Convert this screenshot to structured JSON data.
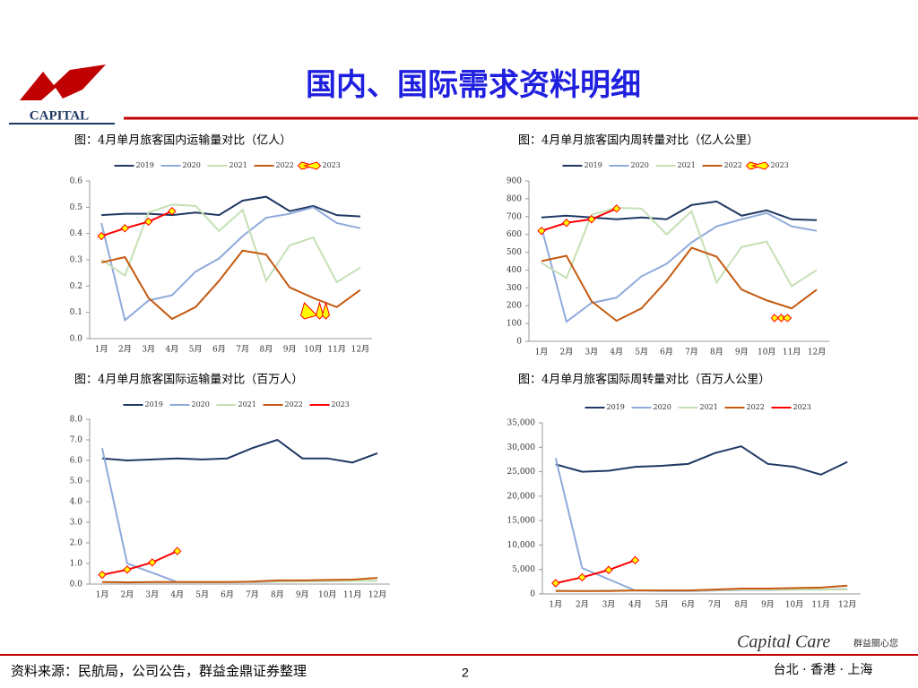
{
  "header": {
    "title": "国内、国际需求资料明细",
    "logo": "CAPITAL"
  },
  "footer": {
    "source": "资料来源：民航局，公司公告，群益金鼎证券整理",
    "page": "2",
    "brand": "Capital Care",
    "slogan": "群益關心您",
    "cities": "台北 · 香港 · 上海"
  },
  "chart_data": [
    {
      "type": "line",
      "title": "图：4月单月旅客国内运输量对比（亿人）",
      "categories": [
        "1月",
        "2月",
        "3月",
        "4月",
        "5月",
        "6月",
        "7月",
        "8月",
        "9月",
        "10月",
        "11月",
        "12月"
      ],
      "ylim": [
        0,
        0.6
      ],
      "yticks": [
        {
          "value": 0,
          "label": "0.0"
        },
        0.1,
        0.2,
        0.3,
        0.4,
        0.5,
        0.6
      ],
      "series": [
        {
          "name": "2019",
          "color": "#1f3864",
          "values": [
            0.47,
            0.475,
            0.475,
            0.47,
            0.48,
            0.47,
            0.525,
            0.54,
            0.485,
            0.505,
            0.47,
            0.465
          ]
        },
        {
          "name": "2020",
          "color": "#8faadc",
          "values": [
            0.44,
            0.07,
            0.145,
            0.165,
            0.255,
            0.305,
            0.39,
            0.46,
            0.475,
            0.5,
            0.44,
            0.42
          ]
        },
        {
          "name": "2021",
          "color": "#c5e0b4",
          "values": [
            0.3,
            0.24,
            0.48,
            0.51,
            0.505,
            0.41,
            0.49,
            0.22,
            0.355,
            0.385,
            0.215,
            0.27
          ]
        },
        {
          "name": "2022",
          "color": "#c55a11",
          "values": [
            0.29,
            0.31,
            0.155,
            0.075,
            0.12,
            0.22,
            0.335,
            0.32,
            0.195,
            0.155,
            0.12,
            0.185
          ]
        },
        {
          "name": "2023",
          "color": "#ff0000",
          "marker": "diamond",
          "values": [
            0.39,
            0.42,
            0.445,
            0.485,
            null,
            null,
            null,
            null,
            null,
            null,
            null,
            null
          ]
        }
      ]
    },
    {
      "type": "line",
      "title": "图：4月单月旅客国内周转量对比（亿人公里）",
      "categories": [
        "1月",
        "2月",
        "3月",
        "4月",
        "5月",
        "6月",
        "7月",
        "8月",
        "9月",
        "10月",
        "11月",
        "12月"
      ],
      "ylim": [
        0,
        900
      ],
      "yticks": [
        0,
        100,
        200,
        300,
        400,
        500,
        600,
        700,
        800,
        900
      ],
      "series": [
        {
          "name": "2019",
          "color": "#1f3864",
          "values": [
            695,
            705,
            695,
            685,
            695,
            685,
            765,
            785,
            705,
            735,
            685,
            680
          ]
        },
        {
          "name": "2020",
          "color": "#8faadc",
          "values": [
            640,
            110,
            215,
            245,
            365,
            435,
            555,
            645,
            685,
            720,
            645,
            620
          ]
        },
        {
          "name": "2021",
          "color": "#c5e0b4",
          "values": [
            440,
            355,
            710,
            750,
            745,
            600,
            730,
            330,
            530,
            560,
            310,
            400
          ]
        },
        {
          "name": "2022",
          "color": "#c55a11",
          "values": [
            450,
            480,
            225,
            115,
            185,
            340,
            525,
            475,
            290,
            230,
            185,
            290
          ]
        },
        {
          "name": "2023",
          "color": "#ff0000",
          "marker": "diamond",
          "values": [
            620,
            665,
            685,
            745,
            null,
            null,
            null,
            null,
            null,
            null,
            null,
            null
          ]
        }
      ]
    },
    {
      "type": "line",
      "title": "图：4月单月旅客国际运输量对比（百万人）",
      "categories": [
        "1月",
        "2月",
        "3月",
        "4月",
        "5月",
        "6月",
        "7月",
        "8月",
        "9月",
        "10月",
        "11月",
        "12月"
      ],
      "ylim": [
        0,
        8
      ],
      "yticks": [
        {
          "value": 0,
          "label": "0.0"
        },
        {
          "value": 1,
          "label": "1.0"
        },
        {
          "value": 2,
          "label": "2.0"
        },
        {
          "value": 3,
          "label": "3.0"
        },
        {
          "value": 4,
          "label": "4.0"
        },
        {
          "value": 5,
          "label": "5.0"
        },
        {
          "value": 6,
          "label": "6.0"
        },
        {
          "value": 7,
          "label": "7.0"
        },
        {
          "value": 8,
          "label": "8.0"
        }
      ],
      "series": [
        {
          "name": "2019",
          "color": "#1f3864",
          "values": [
            6.1,
            6.0,
            6.05,
            6.1,
            6.05,
            6.1,
            6.6,
            7.0,
            6.1,
            6.1,
            5.9,
            6.35
          ]
        },
        {
          "name": "2020",
          "color": "#8faadc",
          "values": [
            6.6,
            1.0,
            0.55,
            0.1,
            0.1,
            0.1,
            0.1,
            0.12,
            0.13,
            0.14,
            0.15,
            0.16
          ]
        },
        {
          "name": "2021",
          "color": "#c5e0b4",
          "values": [
            0.1,
            0.1,
            0.1,
            0.1,
            0.1,
            0.1,
            0.12,
            0.13,
            0.13,
            0.14,
            0.15,
            0.16
          ]
        },
        {
          "name": "2022",
          "color": "#c55a11",
          "values": [
            0.1,
            0.08,
            0.1,
            0.1,
            0.1,
            0.1,
            0.12,
            0.18,
            0.18,
            0.2,
            0.22,
            0.3
          ]
        },
        {
          "name": "2023",
          "color": "#ff0000",
          "marker": "diamond",
          "values": [
            0.45,
            0.7,
            1.05,
            1.6,
            null,
            null,
            null,
            null,
            null,
            null,
            null,
            null
          ]
        }
      ]
    },
    {
      "type": "line",
      "title": "图：4月单月旅客国际周转量对比（百万人公里）",
      "categories": [
        "1月",
        "2月",
        "3月",
        "4月",
        "5月",
        "6月",
        "7月",
        "8月",
        "9月",
        "10月",
        "11月",
        "12月"
      ],
      "ylim": [
        0,
        35000
      ],
      "yticks": [
        0,
        {
          "value": 5000,
          "label": "5,000"
        },
        {
          "value": 10000,
          "label": "10,000"
        },
        {
          "value": 15000,
          "label": "15,000"
        },
        {
          "value": 20000,
          "label": "20,000"
        },
        {
          "value": 25000,
          "label": "25,000"
        },
        {
          "value": 30000,
          "label": "30,000"
        },
        {
          "value": 35000,
          "label": "35,000"
        }
      ],
      "series": [
        {
          "name": "2019",
          "color": "#1f3864",
          "values": [
            26500,
            25000,
            25200,
            26000,
            26200,
            26600,
            28800,
            30200,
            26600,
            26000,
            24400,
            27000
          ]
        },
        {
          "name": "2020",
          "color": "#8faadc",
          "values": [
            27800,
            5300,
            3000,
            700,
            600,
            600,
            700,
            800,
            800,
            900,
            900,
            1000
          ]
        },
        {
          "name": "2021",
          "color": "#c5e0b4",
          "values": [
            700,
            600,
            700,
            700,
            700,
            700,
            800,
            900,
            900,
            900,
            900,
            900
          ]
        },
        {
          "name": "2022",
          "color": "#c55a11",
          "values": [
            600,
            600,
            600,
            700,
            700,
            700,
            900,
            1100,
            1100,
            1200,
            1300,
            1700
          ]
        },
        {
          "name": "2023",
          "color": "#ff0000",
          "marker": "diamond",
          "values": [
            2200,
            3400,
            4900,
            6900,
            null,
            null,
            null,
            null,
            null,
            null,
            null,
            null
          ]
        }
      ]
    }
  ]
}
